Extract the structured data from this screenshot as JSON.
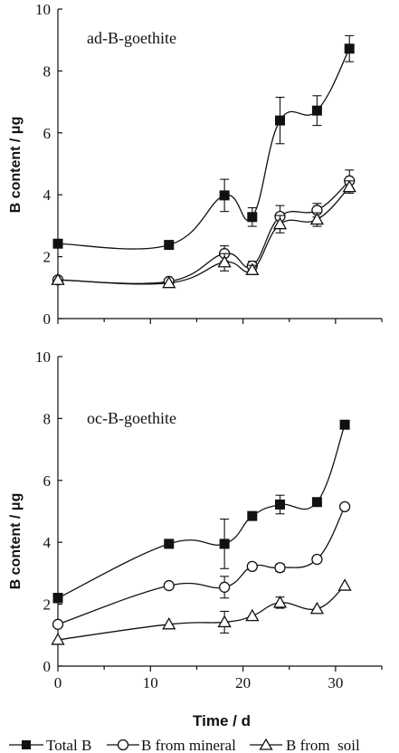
{
  "chart_data": [
    {
      "type": "line",
      "annotation": "ad-B-goethite",
      "xlabel": "",
      "ylabel": "B content / μg",
      "xlim": [
        0,
        35
      ],
      "ylim": [
        0,
        10
      ],
      "y_ticks": [
        "0",
        "2",
        "4",
        "6",
        "8",
        "10"
      ],
      "x_ticks": [],
      "series": [
        {
          "name": "Total B",
          "marker": "square-filled",
          "x": [
            0,
            12,
            18,
            21,
            24,
            28,
            31.5
          ],
          "y": [
            2.42,
            2.38,
            3.98,
            3.28,
            6.4,
            6.72,
            8.72
          ],
          "err": [
            0,
            0,
            0.52,
            0.3,
            0.75,
            0.48,
            0.42
          ]
        },
        {
          "name": "B from mineral",
          "marker": "circle-open",
          "x": [
            0,
            12,
            18,
            21,
            24,
            28,
            31.5
          ],
          "y": [
            1.25,
            1.2,
            2.1,
            1.7,
            3.3,
            3.5,
            4.45
          ],
          "err": [
            0,
            0,
            0.25,
            0.15,
            0.35,
            0.22,
            0.35
          ]
        },
        {
          "name": "B from soil",
          "marker": "triangle-open",
          "x": [
            0,
            12,
            18,
            21,
            24,
            28,
            31.5
          ],
          "y": [
            1.25,
            1.15,
            1.82,
            1.57,
            3.05,
            3.2,
            4.25
          ],
          "err": [
            0,
            0,
            0.28,
            0.15,
            0.28,
            0.22,
            0.2
          ]
        }
      ]
    },
    {
      "type": "line",
      "annotation": "oc-B-goethite",
      "xlabel": "Time / d",
      "ylabel": "B content / μg",
      "xlim": [
        0,
        35
      ],
      "ylim": [
        0,
        10
      ],
      "y_ticks": [
        "0",
        "2",
        "4",
        "6",
        "8",
        "10"
      ],
      "x_ticks": [
        "0",
        "10",
        "20",
        "30"
      ],
      "series": [
        {
          "name": "Total B",
          "marker": "square-filled",
          "x": [
            0,
            12,
            18,
            21,
            24,
            28,
            31
          ],
          "y": [
            2.2,
            3.95,
            3.95,
            4.85,
            5.22,
            5.3,
            7.8
          ],
          "err": [
            0.15,
            0,
            0.8,
            0,
            0.3,
            0,
            0
          ]
        },
        {
          "name": "B from mineral",
          "marker": "circle-open",
          "x": [
            0,
            12,
            18,
            21,
            24,
            28,
            31
          ],
          "y": [
            1.35,
            2.6,
            2.55,
            3.22,
            3.18,
            3.45,
            5.15
          ],
          "err": [
            0,
            0,
            0.35,
            0,
            0.12,
            0,
            0
          ]
        },
        {
          "name": "B from soil",
          "marker": "triangle-open",
          "x": [
            0,
            12,
            18,
            21,
            24,
            28,
            31
          ],
          "y": [
            0.85,
            1.35,
            1.42,
            1.62,
            2.05,
            1.85,
            2.6
          ],
          "err": [
            0,
            0,
            0.35,
            0,
            0.18,
            0,
            0
          ]
        }
      ]
    }
  ],
  "legend": {
    "items": [
      "Total B",
      "B from mineral",
      "B from  soil"
    ]
  },
  "colors": {
    "ink": "#111111",
    "fill_open": "#ffffff"
  }
}
